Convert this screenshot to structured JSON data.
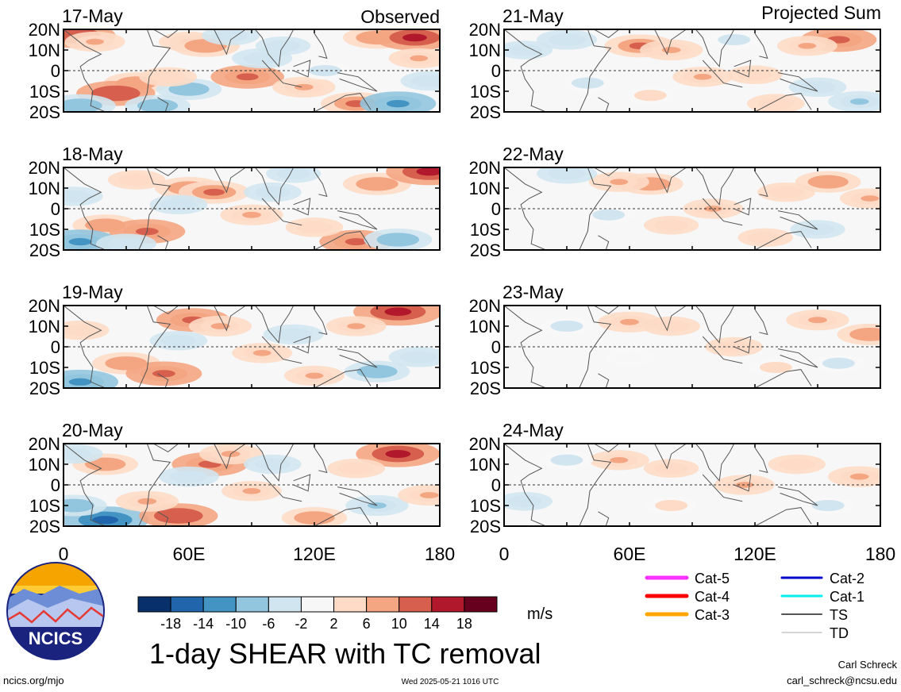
{
  "chart_data": {
    "type": "heatmap",
    "variable": "1-day SHEAR with TC removal",
    "units": "m/s",
    "x_range": [
      0,
      180
    ],
    "y_range": [
      -20,
      20
    ],
    "x_ticks": [
      "0",
      "60E",
      "120E",
      "180"
    ],
    "y_ticks": [
      "20N",
      "10N",
      "0",
      "10S",
      "20S"
    ],
    "columns": [
      {
        "header": "Observed",
        "panels": [
          {
            "date": "17-May",
            "blobs": [
              {
                "lon": 6,
                "lat": 17,
                "val": 13
              },
              {
                "lon": 15,
                "lat": 14,
                "val": 6
              },
              {
                "lon": 35,
                "lat": -6,
                "val": 8
              },
              {
                "lon": 25,
                "lat": -11,
                "val": 13
              },
              {
                "lon": 60,
                "lat": -9,
                "val": -8
              },
              {
                "lon": 50,
                "lat": -3,
                "val": 5
              },
              {
                "lon": 60,
                "lat": 14,
                "val": 6
              },
              {
                "lon": 68,
                "lat": 12,
                "val": 9
              },
              {
                "lon": 88,
                "lat": -3,
                "val": 11
              },
              {
                "lon": 95,
                "lat": 6,
                "val": -6
              },
              {
                "lon": 105,
                "lat": 12,
                "val": -4
              },
              {
                "lon": 150,
                "lat": 16,
                "val": 9
              },
              {
                "lon": 168,
                "lat": 16,
                "val": 14
              },
              {
                "lon": 170,
                "lat": 6,
                "val": 6
              },
              {
                "lon": 8,
                "lat": -17,
                "val": -10
              },
              {
                "lon": 45,
                "lat": -17,
                "val": -8
              },
              {
                "lon": 140,
                "lat": -16,
                "val": 10
              },
              {
                "lon": 160,
                "lat": -16,
                "val": -12
              },
              {
                "lon": 115,
                "lat": -8,
                "val": 7
              },
              {
                "lon": 175,
                "lat": -5,
                "val": -5
              },
              {
                "lon": 125,
                "lat": 0,
                "val": -3
              },
              {
                "lon": 80,
                "lat": 17,
                "val": -5
              }
            ]
          },
          {
            "date": "18-May",
            "blobs": [
              {
                "lon": 20,
                "lat": -8,
                "val": 8
              },
              {
                "lon": 40,
                "lat": -11,
                "val": 12
              },
              {
                "lon": 8,
                "lat": -16,
                "val": -12
              },
              {
                "lon": 30,
                "lat": -17,
                "val": -6
              },
              {
                "lon": 60,
                "lat": 10,
                "val": 9
              },
              {
                "lon": 72,
                "lat": 8,
                "val": 10
              },
              {
                "lon": 55,
                "lat": 2,
                "val": -5
              },
              {
                "lon": 90,
                "lat": -3,
                "val": 7
              },
              {
                "lon": 100,
                "lat": 8,
                "val": -5
              },
              {
                "lon": 150,
                "lat": 12,
                "val": 9
              },
              {
                "lon": 175,
                "lat": 18,
                "val": 16
              },
              {
                "lon": 140,
                "lat": -16,
                "val": 11
              },
              {
                "lon": 160,
                "lat": -15,
                "val": -9
              },
              {
                "lon": 120,
                "lat": -9,
                "val": 5
              },
              {
                "lon": 5,
                "lat": 6,
                "val": -5
              },
              {
                "lon": 35,
                "lat": 14,
                "val": 5
              },
              {
                "lon": 110,
                "lat": 17,
                "val": -4
              }
            ]
          },
          {
            "date": "19-May",
            "blobs": [
              {
                "lon": 8,
                "lat": -17,
                "val": -12
              },
              {
                "lon": 30,
                "lat": -8,
                "val": 9
              },
              {
                "lon": 48,
                "lat": -13,
                "val": 12
              },
              {
                "lon": 62,
                "lat": 13,
                "val": 11
              },
              {
                "lon": 75,
                "lat": 10,
                "val": 7
              },
              {
                "lon": 55,
                "lat": 3,
                "val": -5
              },
              {
                "lon": 95,
                "lat": -3,
                "val": 6
              },
              {
                "lon": 110,
                "lat": 6,
                "val": -6
              },
              {
                "lon": 160,
                "lat": 17,
                "val": 17
              },
              {
                "lon": 140,
                "lat": 10,
                "val": 6
              },
              {
                "lon": 150,
                "lat": -12,
                "val": -8
              },
              {
                "lon": 120,
                "lat": -14,
                "val": 6
              },
              {
                "lon": 170,
                "lat": -5,
                "val": -6
              },
              {
                "lon": 8,
                "lat": 8,
                "val": 5
              }
            ]
          },
          {
            "date": "20-May",
            "blobs": [
              {
                "lon": 20,
                "lat": -17,
                "val": -16
              },
              {
                "lon": 5,
                "lat": -10,
                "val": -8
              },
              {
                "lon": 55,
                "lat": -15,
                "val": 13
              },
              {
                "lon": 40,
                "lat": -8,
                "val": 7
              },
              {
                "lon": 70,
                "lat": 10,
                "val": 12
              },
              {
                "lon": 80,
                "lat": 15,
                "val": 7
              },
              {
                "lon": 60,
                "lat": 4,
                "val": -6
              },
              {
                "lon": 90,
                "lat": -3,
                "val": 6
              },
              {
                "lon": 100,
                "lat": 10,
                "val": -5
              },
              {
                "lon": 160,
                "lat": 15,
                "val": 15
              },
              {
                "lon": 140,
                "lat": 8,
                "val": 5
              },
              {
                "lon": 120,
                "lat": -16,
                "val": 8
              },
              {
                "lon": 150,
                "lat": -10,
                "val": -7
              },
              {
                "lon": 20,
                "lat": 10,
                "val": 8
              },
              {
                "lon": 5,
                "lat": 15,
                "val": -5
              },
              {
                "lon": 175,
                "lat": -5,
                "val": 7
              }
            ]
          }
        ]
      },
      {
        "header": "Projected Sum",
        "panels": [
          {
            "date": "21-May",
            "blobs": [
              {
                "lon": 65,
                "lat": 12,
                "val": 10
              },
              {
                "lon": 80,
                "lat": 10,
                "val": 7
              },
              {
                "lon": 160,
                "lat": 15,
                "val": 12
              },
              {
                "lon": 145,
                "lat": 12,
                "val": 6
              },
              {
                "lon": 95,
                "lat": -3,
                "val": 6
              },
              {
                "lon": 120,
                "lat": -2,
                "val": 4
              },
              {
                "lon": 30,
                "lat": 15,
                "val": -6
              },
              {
                "lon": 10,
                "lat": 10,
                "val": -4
              },
              {
                "lon": 40,
                "lat": -6,
                "val": -3
              },
              {
                "lon": 150,
                "lat": -8,
                "val": -5
              },
              {
                "lon": 170,
                "lat": -15,
                "val": -7
              },
              {
                "lon": 110,
                "lat": 15,
                "val": -3
              },
              {
                "lon": 70,
                "lat": -12,
                "val": 3
              },
              {
                "lon": 130,
                "lat": -16,
                "val": 5
              }
            ]
          },
          {
            "date": "22-May",
            "blobs": [
              {
                "lon": 70,
                "lat": 12,
                "val": 8
              },
              {
                "lon": 55,
                "lat": 13,
                "val": 6
              },
              {
                "lon": 100,
                "lat": 0,
                "val": 6
              },
              {
                "lon": 155,
                "lat": 13,
                "val": 8
              },
              {
                "lon": 135,
                "lat": 8,
                "val": 5
              },
              {
                "lon": 30,
                "lat": 17,
                "val": -6
              },
              {
                "lon": 50,
                "lat": -3,
                "val": -3
              },
              {
                "lon": 80,
                "lat": -8,
                "val": 4
              },
              {
                "lon": 150,
                "lat": -10,
                "val": -4
              },
              {
                "lon": 175,
                "lat": 5,
                "val": 6
              },
              {
                "lon": 125,
                "lat": -14,
                "val": 4
              }
            ]
          },
          {
            "date": "23-May",
            "blobs": [
              {
                "lon": 60,
                "lat": 12,
                "val": 7
              },
              {
                "lon": 80,
                "lat": 10,
                "val": 5
              },
              {
                "lon": 110,
                "lat": 0,
                "val": 5
              },
              {
                "lon": 150,
                "lat": 13,
                "val": 7
              },
              {
                "lon": 175,
                "lat": 6,
                "val": 8
              },
              {
                "lon": 30,
                "lat": 10,
                "val": -3
              },
              {
                "lon": 60,
                "lat": -5,
                "val": -2
              },
              {
                "lon": 130,
                "lat": -10,
                "val": 3
              },
              {
                "lon": 160,
                "lat": -8,
                "val": -3
              }
            ]
          },
          {
            "date": "24-May",
            "blobs": [
              {
                "lon": 55,
                "lat": 12,
                "val": 6
              },
              {
                "lon": 80,
                "lat": 8,
                "val": 4
              },
              {
                "lon": 115,
                "lat": 0,
                "val": 6
              },
              {
                "lon": 140,
                "lat": 10,
                "val": 5
              },
              {
                "lon": 170,
                "lat": 4,
                "val": 7
              },
              {
                "lon": 10,
                "lat": -8,
                "val": -4
              },
              {
                "lon": 30,
                "lat": 12,
                "val": -3
              },
              {
                "lon": 80,
                "lat": -10,
                "val": 3
              },
              {
                "lon": 155,
                "lat": -10,
                "val": -3
              }
            ]
          }
        ]
      }
    ],
    "colorbar": {
      "levels": [
        "-18",
        "-14",
        "-10",
        "-6",
        "-2",
        "2",
        "6",
        "10",
        "14",
        "18"
      ],
      "colors": [
        "#08306b",
        "#2166ac",
        "#4393c3",
        "#92c5de",
        "#d1e5f0",
        "#f7f7f7",
        "#fddbc7",
        "#f4a582",
        "#d6604d",
        "#b2182b",
        "#67001f"
      ],
      "units": "m/s"
    },
    "legend": [
      {
        "label": "Cat-5",
        "color": "#ff33ff",
        "width": 5
      },
      {
        "label": "Cat-4",
        "color": "#ff0000",
        "width": 5
      },
      {
        "label": "Cat-3",
        "color": "#ffa500",
        "width": 5
      },
      {
        "label": "Cat-2",
        "color": "#0000cc",
        "width": 3
      },
      {
        "label": "Cat-1",
        "color": "#00eeee",
        "width": 3
      },
      {
        "label": "TS",
        "color": "#555555",
        "width": 2
      },
      {
        "label": "TD",
        "color": "#aaaaaa",
        "width": 1
      }
    ]
  },
  "logo": {
    "text": "NCICS"
  },
  "title": "1-day SHEAR with TC removal",
  "units_label": "m/s",
  "footer": {
    "url": "ncics.org/mjo",
    "timestamp": "Wed 2025-05-21 1016 UTC",
    "author": "Carl Schreck",
    "email": "carl_schreck@ncsu.edu"
  }
}
